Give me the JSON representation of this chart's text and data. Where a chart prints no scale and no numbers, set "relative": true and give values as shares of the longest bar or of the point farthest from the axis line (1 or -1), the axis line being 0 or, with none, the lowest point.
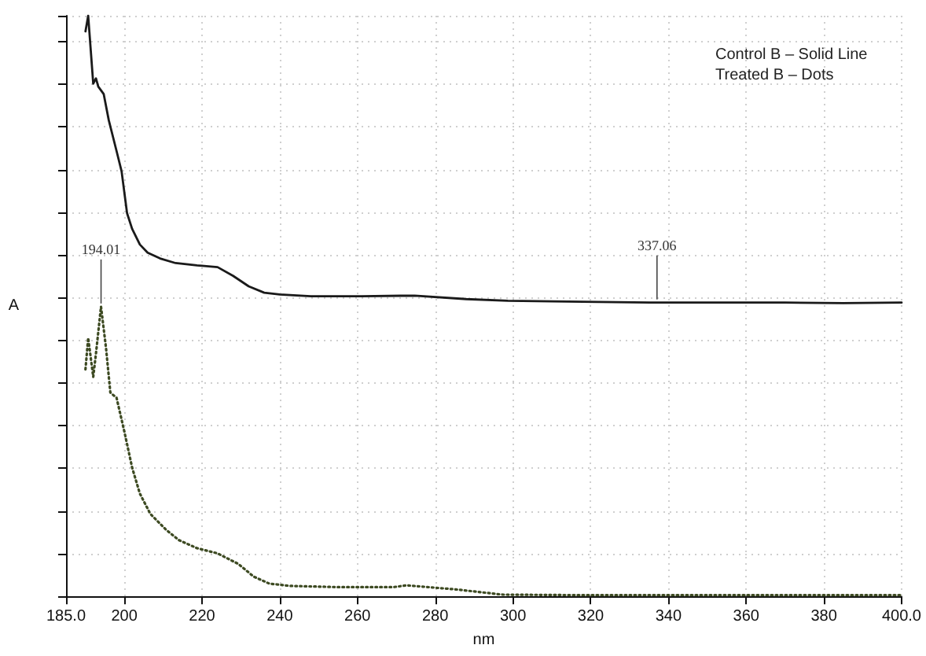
{
  "chart_data": {
    "type": "line",
    "xlabel": "nm",
    "ylabel": "A",
    "relative": true,
    "xlim": [
      185,
      400
    ],
    "xticks": [
      {
        "value": 185,
        "label": "185.0"
      },
      200,
      220,
      240,
      260,
      280,
      300,
      320,
      340,
      360,
      380,
      {
        "value": 400,
        "label": "400.0"
      }
    ],
    "grid": true,
    "marker": "none",
    "annotations": [
      "Control B – Solid Line",
      "Treated B – Dots",
      {
        "text": "194.01",
        "x": 194.01,
        "y": 0.499
      },
      {
        "text": "337.06",
        "x": 337.06,
        "y": 0.506
      }
    ],
    "series": [
      {
        "color": "#1a1a1a",
        "line_style": "solid",
        "x": [
          190,
          190.7,
          191.3,
          192,
          192.7,
          193.3,
          194.7,
          196,
          198,
          199.3,
          200.7,
          202,
          204,
          206,
          209.2,
          213.2,
          218.7,
          224,
          228,
          232,
          236,
          240,
          248,
          261,
          274.7,
          288,
          298.7,
          310,
          322,
          335.3,
          350,
          370,
          385,
          400
        ],
        "values": [
          0.973,
          1,
          0.946,
          0.883,
          0.892,
          0.878,
          0.865,
          0.82,
          0.767,
          0.732,
          0.66,
          0.633,
          0.606,
          0.592,
          0.582,
          0.574,
          0.57,
          0.567,
          0.552,
          0.534,
          0.523,
          0.52,
          0.517,
          0.517,
          0.518,
          0.512,
          0.509,
          0.508,
          0.507,
          0.506,
          0.506,
          0.506,
          0.505,
          0.506
        ]
      },
      {
        "color": "#3d4a22",
        "line_style": "dotted",
        "x": [
          190,
          190.7,
          192,
          192.7,
          194,
          195.3,
          196.4,
          198,
          200,
          202,
          204,
          206.7,
          210.7,
          214,
          218.7,
          224,
          229.3,
          233.3,
          237.3,
          242.7,
          254.7,
          269.3,
          272.7,
          285.3,
          297.3,
          320,
          350,
          380,
          400
        ],
        "values": [
          0.391,
          0.445,
          0.378,
          0.418,
          0.499,
          0.427,
          0.351,
          0.342,
          0.284,
          0.222,
          0.177,
          0.142,
          0.115,
          0.097,
          0.083,
          0.074,
          0.056,
          0.034,
          0.022,
          0.018,
          0.016,
          0.016,
          0.019,
          0.012,
          0.003,
          0.002,
          0.002,
          0.002,
          0.002
        ]
      }
    ]
  }
}
